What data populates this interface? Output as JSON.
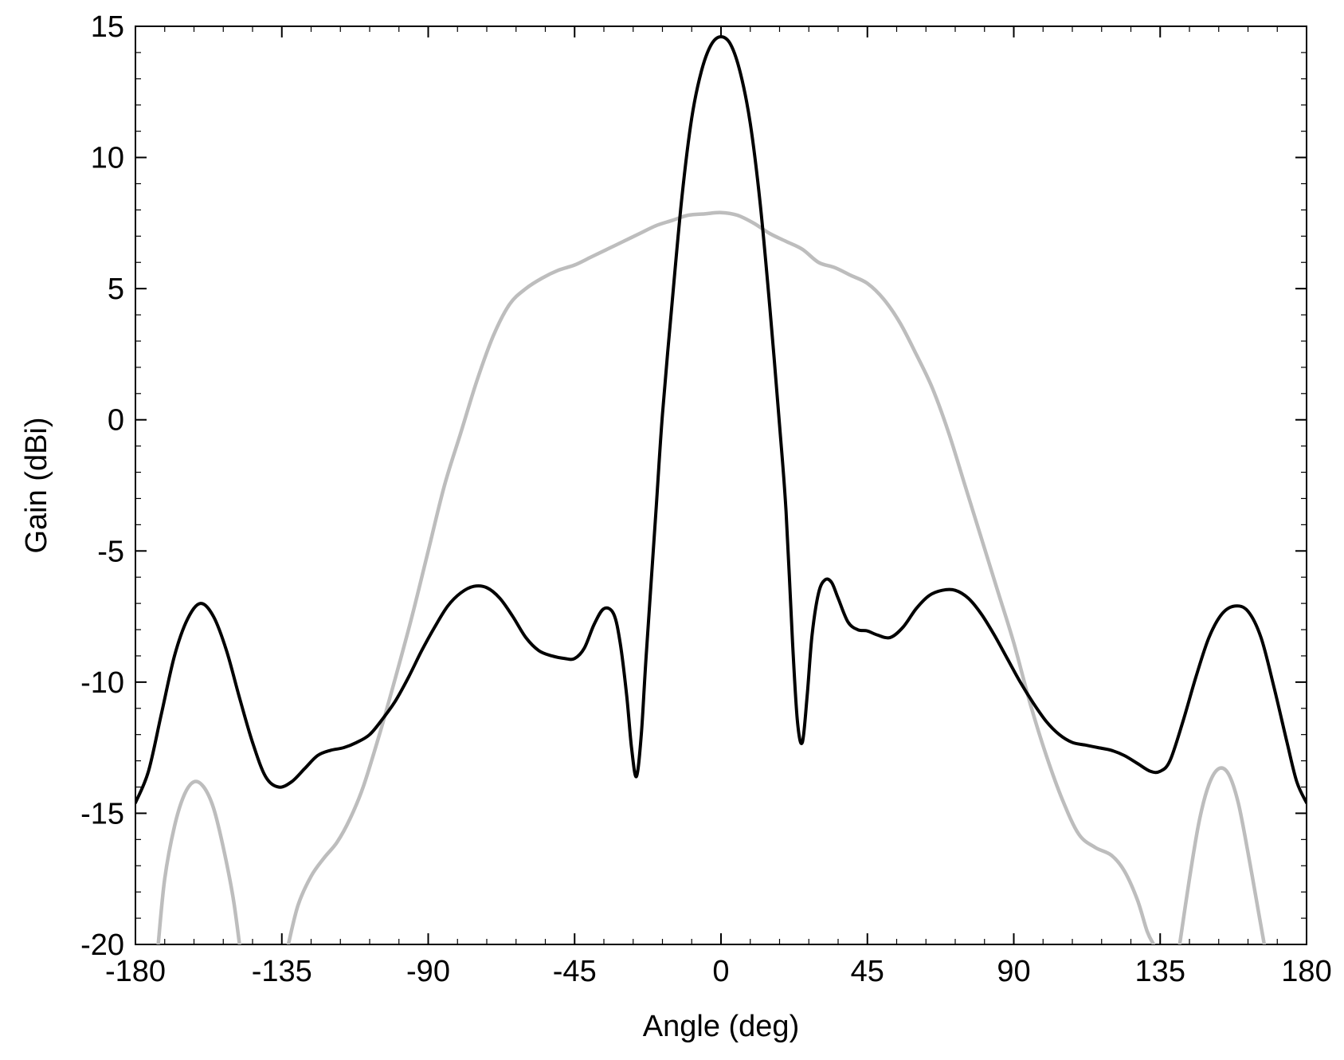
{
  "chart_data": {
    "type": "line",
    "title": "",
    "xlabel": "Angle (deg)",
    "ylabel": "Gain (dBi)",
    "xlim": [
      -180,
      180
    ],
    "ylim": [
      -20,
      15
    ],
    "xticks": [
      -180,
      -135,
      -90,
      -45,
      0,
      45,
      90,
      135,
      180
    ],
    "yticks": [
      -20,
      -15,
      -10,
      -5,
      0,
      5,
      10,
      15
    ],
    "grid": false,
    "legend": "none",
    "series": [
      {
        "color": "#000000",
        "points": [
          [
            -180,
            -14.6
          ],
          [
            -176,
            -13.4
          ],
          [
            -172,
            -11.2
          ],
          [
            -168,
            -9.0
          ],
          [
            -164,
            -7.6
          ],
          [
            -160,
            -7.0
          ],
          [
            -156,
            -7.5
          ],
          [
            -152,
            -8.8
          ],
          [
            -148,
            -10.6
          ],
          [
            -144,
            -12.3
          ],
          [
            -140,
            -13.6
          ],
          [
            -136,
            -14.0
          ],
          [
            -132,
            -13.8
          ],
          [
            -128,
            -13.3
          ],
          [
            -124,
            -12.8
          ],
          [
            -120,
            -12.6
          ],
          [
            -116,
            -12.5
          ],
          [
            -112,
            -12.3
          ],
          [
            -108,
            -12.0
          ],
          [
            -104,
            -11.4
          ],
          [
            -100,
            -10.7
          ],
          [
            -96,
            -9.8
          ],
          [
            -92,
            -8.8
          ],
          [
            -88,
            -7.9
          ],
          [
            -84,
            -7.1
          ],
          [
            -80,
            -6.6
          ],
          [
            -76,
            -6.35
          ],
          [
            -72,
            -6.4
          ],
          [
            -68,
            -6.8
          ],
          [
            -64,
            -7.5
          ],
          [
            -60,
            -8.3
          ],
          [
            -56,
            -8.8
          ],
          [
            -52,
            -9.0
          ],
          [
            -48,
            -9.1
          ],
          [
            -45,
            -9.1
          ],
          [
            -42,
            -8.7
          ],
          [
            -39,
            -7.8
          ],
          [
            -36,
            -7.2
          ],
          [
            -33,
            -7.4
          ],
          [
            -31,
            -8.5
          ],
          [
            -29,
            -10.5
          ],
          [
            -27.5,
            -12.5
          ],
          [
            -26,
            -13.6
          ],
          [
            -24.5,
            -12.0
          ],
          [
            -23,
            -9.0
          ],
          [
            -20,
            -3.5
          ],
          [
            -18,
            0.2
          ],
          [
            -15,
            4.5
          ],
          [
            -12,
            8.5
          ],
          [
            -9,
            11.5
          ],
          [
            -6,
            13.3
          ],
          [
            -3,
            14.3
          ],
          [
            0,
            14.6
          ],
          [
            3,
            14.3
          ],
          [
            6,
            13.2
          ],
          [
            9,
            11.3
          ],
          [
            12,
            8.3
          ],
          [
            15,
            4.3
          ],
          [
            18,
            -0.2
          ],
          [
            20,
            -3.5
          ],
          [
            22,
            -8.5
          ],
          [
            23.5,
            -11.5
          ],
          [
            25,
            -12.3
          ],
          [
            26.5,
            -10.5
          ],
          [
            28,
            -8.2
          ],
          [
            30,
            -6.6
          ],
          [
            32,
            -6.1
          ],
          [
            34,
            -6.2
          ],
          [
            36,
            -6.8
          ],
          [
            39,
            -7.7
          ],
          [
            42,
            -8.0
          ],
          [
            45,
            -8.05
          ],
          [
            48,
            -8.2
          ],
          [
            52,
            -8.3
          ],
          [
            56,
            -7.9
          ],
          [
            60,
            -7.2
          ],
          [
            64,
            -6.7
          ],
          [
            68,
            -6.5
          ],
          [
            72,
            -6.5
          ],
          [
            76,
            -6.8
          ],
          [
            80,
            -7.4
          ],
          [
            84,
            -8.2
          ],
          [
            88,
            -9.1
          ],
          [
            92,
            -10.0
          ],
          [
            96,
            -10.8
          ],
          [
            100,
            -11.5
          ],
          [
            104,
            -12.0
          ],
          [
            108,
            -12.3
          ],
          [
            112,
            -12.4
          ],
          [
            116,
            -12.5
          ],
          [
            120,
            -12.6
          ],
          [
            124,
            -12.8
          ],
          [
            128,
            -13.1
          ],
          [
            132,
            -13.4
          ],
          [
            135,
            -13.4
          ],
          [
            138,
            -13.0
          ],
          [
            142,
            -11.5
          ],
          [
            146,
            -9.8
          ],
          [
            150,
            -8.3
          ],
          [
            154,
            -7.4
          ],
          [
            158,
            -7.1
          ],
          [
            162,
            -7.3
          ],
          [
            166,
            -8.3
          ],
          [
            170,
            -10.2
          ],
          [
            174,
            -12.3
          ],
          [
            177,
            -13.8
          ],
          [
            180,
            -14.6
          ]
        ]
      },
      {
        "color": "#bdbdbd",
        "segments": [
          [
            [
              -173,
              -20.0
            ],
            [
              -171,
              -17.5
            ],
            [
              -168,
              -15.5
            ],
            [
              -165,
              -14.3
            ],
            [
              -162,
              -13.8
            ],
            [
              -159,
              -14.0
            ],
            [
              -156,
              -14.8
            ],
            [
              -153,
              -16.3
            ],
            [
              -150,
              -18.2
            ],
            [
              -148,
              -20.0
            ]
          ],
          [
            [
              -133,
              -20.0
            ],
            [
              -130,
              -18.5
            ],
            [
              -126,
              -17.4
            ],
            [
              -122,
              -16.7
            ],
            [
              -118,
              -16.1
            ],
            [
              -114,
              -15.2
            ],
            [
              -110,
              -14.0
            ],
            [
              -105,
              -12.0
            ],
            [
              -100,
              -9.8
            ],
            [
              -95,
              -7.5
            ],
            [
              -90,
              -5.0
            ],
            [
              -85,
              -2.5
            ],
            [
              -80,
              -0.5
            ],
            [
              -75,
              1.5
            ],
            [
              -70,
              3.2
            ],
            [
              -65,
              4.4
            ],
            [
              -60,
              5.0
            ],
            [
              -55,
              5.4
            ],
            [
              -50,
              5.7
            ],
            [
              -45,
              5.9
            ],
            [
              -40,
              6.2
            ],
            [
              -35,
              6.5
            ],
            [
              -30,
              6.8
            ],
            [
              -25,
              7.1
            ],
            [
              -20,
              7.4
            ],
            [
              -15,
              7.6
            ],
            [
              -10,
              7.8
            ],
            [
              -5,
              7.85
            ],
            [
              0,
              7.9
            ],
            [
              5,
              7.8
            ],
            [
              10,
              7.5
            ],
            [
              15,
              7.1
            ],
            [
              20,
              6.8
            ],
            [
              25,
              6.5
            ],
            [
              30,
              6.0
            ],
            [
              35,
              5.8
            ],
            [
              40,
              5.5
            ],
            [
              45,
              5.2
            ],
            [
              50,
              4.6
            ],
            [
              55,
              3.7
            ],
            [
              60,
              2.5
            ],
            [
              65,
              1.2
            ],
            [
              70,
              -0.5
            ],
            [
              75,
              -2.5
            ],
            [
              80,
              -4.5
            ],
            [
              85,
              -6.5
            ],
            [
              90,
              -8.5
            ],
            [
              95,
              -10.8
            ],
            [
              100,
              -12.8
            ],
            [
              105,
              -14.5
            ],
            [
              110,
              -15.8
            ],
            [
              115,
              -16.3
            ],
            [
              120,
              -16.6
            ],
            [
              124,
              -17.2
            ],
            [
              128,
              -18.3
            ],
            [
              131,
              -19.5
            ],
            [
              133,
              -20.0
            ]
          ],
          [
            [
              141,
              -20.0
            ],
            [
              144,
              -17.5
            ],
            [
              147,
              -15.3
            ],
            [
              150,
              -13.9
            ],
            [
              153,
              -13.3
            ],
            [
              156,
              -13.5
            ],
            [
              159,
              -14.6
            ],
            [
              162,
              -16.5
            ],
            [
              165,
              -18.6
            ],
            [
              167,
              -20.0
            ]
          ]
        ]
      }
    ]
  }
}
